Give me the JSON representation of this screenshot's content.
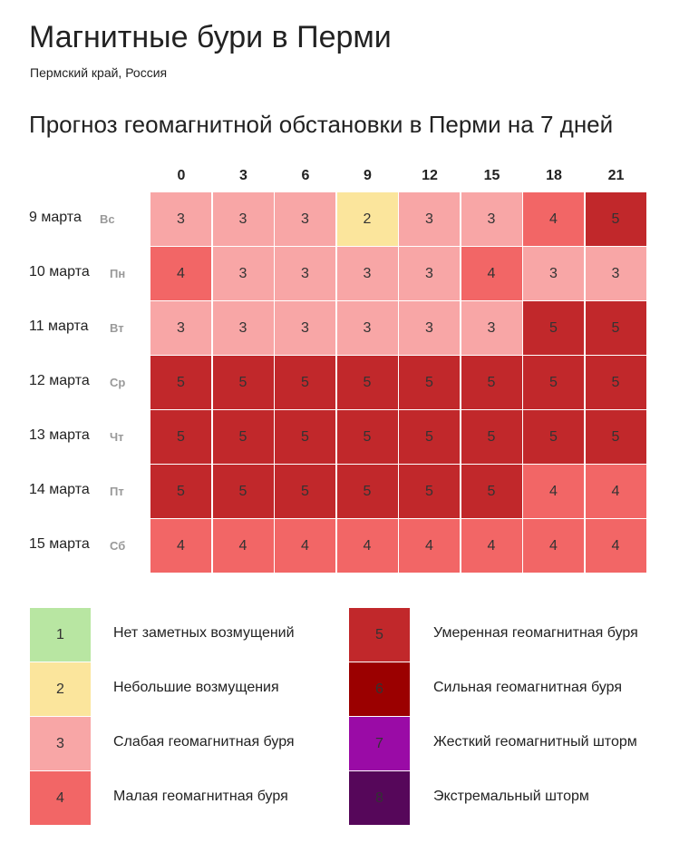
{
  "header": {
    "title": "Магнитные бури в Перми",
    "subtitle": "Пермский край, Россия"
  },
  "table": {
    "title": "Прогноз геомагнитной обстановки в Перми на 7 дней",
    "columns": [
      0,
      3,
      6,
      9,
      12,
      15,
      18,
      21
    ],
    "rows": [
      {
        "date": "9 марта",
        "weekday": "Вс",
        "values": [
          3,
          3,
          3,
          2,
          3,
          3,
          4,
          5
        ]
      },
      {
        "date": "10 марта",
        "weekday": "Пн",
        "values": [
          4,
          3,
          3,
          3,
          3,
          4,
          3,
          3
        ]
      },
      {
        "date": "11 марта",
        "weekday": "Вт",
        "values": [
          3,
          3,
          3,
          3,
          3,
          3,
          5,
          5
        ]
      },
      {
        "date": "12 марта",
        "weekday": "Ср",
        "values": [
          5,
          5,
          5,
          5,
          5,
          5,
          5,
          5
        ]
      },
      {
        "date": "13 марта",
        "weekday": "Чт",
        "values": [
          5,
          5,
          5,
          5,
          5,
          5,
          5,
          5
        ]
      },
      {
        "date": "14 марта",
        "weekday": "Пт",
        "values": [
          5,
          5,
          5,
          5,
          5,
          5,
          4,
          4
        ]
      },
      {
        "date": "15 марта",
        "weekday": "Сб",
        "values": [
          4,
          4,
          4,
          4,
          4,
          4,
          4,
          4
        ]
      }
    ]
  },
  "legend": [
    {
      "level": 1,
      "label": "Нет заметных возмущений",
      "color": "#b8e6a2"
    },
    {
      "level": 2,
      "label": "Небольшие возмущения",
      "color": "#fbe59c"
    },
    {
      "level": 3,
      "label": "Слабая геомагнитная буря",
      "color": "#f8a6a6"
    },
    {
      "level": 4,
      "label": "Малая геомагнитная буря",
      "color": "#f26666"
    },
    {
      "level": 5,
      "label": "Умеренная геомагнитная буря",
      "color": "#c1282b"
    },
    {
      "level": 6,
      "label": "Сильная геомагнитная буря",
      "color": "#9b0000"
    },
    {
      "level": 7,
      "label": "Жесткий геомагнитный шторм",
      "color": "#9a0ba6"
    },
    {
      "level": 8,
      "label": "Экстремальный шторм",
      "color": "#56075a"
    }
  ]
}
